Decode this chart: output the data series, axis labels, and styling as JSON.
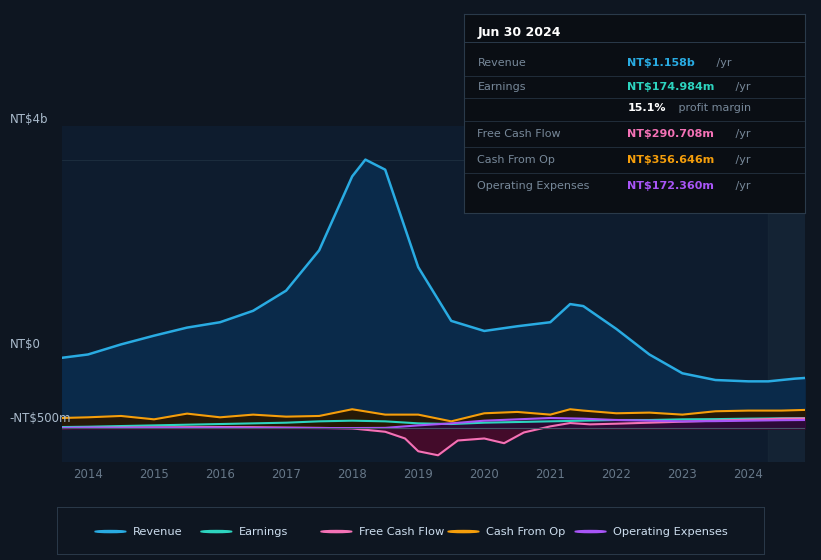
{
  "bg_color": "#0e1621",
  "plot_bg_color": "#0e1c2e",
  "title": "Jun 30 2024",
  "ylim": [
    -500,
    4500
  ],
  "y_zero": 0,
  "y_top": 4000,
  "y_neg": -500,
  "ytick_label_top": "NT$4b",
  "ytick_label_zero": "NT$0",
  "ytick_label_neg": "-NT$500m",
  "xlim_start": 2013.6,
  "xlim_end": 2024.85,
  "xticks": [
    2014,
    2015,
    2016,
    2017,
    2018,
    2019,
    2020,
    2021,
    2022,
    2023,
    2024
  ],
  "shade_start": 2024.3,
  "legend": [
    {
      "label": "Revenue",
      "color": "#29abe2"
    },
    {
      "label": "Earnings",
      "color": "#2dd4bf"
    },
    {
      "label": "Free Cash Flow",
      "color": "#f472b6"
    },
    {
      "label": "Cash From Op",
      "color": "#f59e0b"
    },
    {
      "label": "Operating Expenses",
      "color": "#a855f7"
    }
  ],
  "revenue": {
    "color": "#29abe2",
    "fill_color": "#0a2a4a",
    "x": [
      2013.6,
      2014.0,
      2014.5,
      2015.0,
      2015.5,
      2016.0,
      2016.5,
      2017.0,
      2017.5,
      2018.0,
      2018.2,
      2018.5,
      2019.0,
      2019.5,
      2020.0,
      2020.5,
      2021.0,
      2021.3,
      2021.5,
      2022.0,
      2022.5,
      2023.0,
      2023.5,
      2024.0,
      2024.3,
      2024.5,
      2024.7,
      2024.85
    ],
    "y": [
      1050,
      1100,
      1250,
      1380,
      1500,
      1580,
      1750,
      2050,
      2650,
      3750,
      4000,
      3850,
      2400,
      1600,
      1450,
      1520,
      1580,
      1850,
      1820,
      1480,
      1100,
      820,
      720,
      700,
      700,
      720,
      740,
      750
    ]
  },
  "earnings": {
    "color": "#2dd4bf",
    "fill_color": "#053030",
    "x": [
      2013.6,
      2014.0,
      2014.5,
      2015.0,
      2015.5,
      2016.0,
      2016.5,
      2017.0,
      2017.5,
      2018.0,
      2018.5,
      2019.0,
      2019.5,
      2020.0,
      2020.5,
      2021.0,
      2021.5,
      2022.0,
      2022.5,
      2023.0,
      2023.5,
      2024.0,
      2024.5,
      2024.85
    ],
    "y": [
      20,
      25,
      35,
      45,
      55,
      65,
      75,
      85,
      105,
      115,
      105,
      75,
      65,
      85,
      95,
      105,
      115,
      125,
      125,
      135,
      138,
      145,
      150,
      152
    ]
  },
  "free_cash_flow": {
    "color": "#f472b6",
    "fill_color": "#4a0a2a",
    "x": [
      2013.6,
      2014.0,
      2014.5,
      2015.0,
      2015.5,
      2016.0,
      2016.5,
      2017.0,
      2017.5,
      2018.0,
      2018.5,
      2018.8,
      2019.0,
      2019.3,
      2019.6,
      2020.0,
      2020.3,
      2020.6,
      2021.0,
      2021.3,
      2021.6,
      2022.0,
      2022.5,
      2023.0,
      2023.5,
      2024.0,
      2024.5,
      2024.85
    ],
    "y": [
      5,
      8,
      12,
      15,
      18,
      20,
      18,
      12,
      8,
      0,
      -50,
      -150,
      -340,
      -400,
      -180,
      -150,
      -220,
      -60,
      30,
      80,
      60,
      70,
      85,
      100,
      115,
      130,
      145,
      148
    ]
  },
  "cash_from_op": {
    "color": "#f59e0b",
    "fill_color": "#2a1800",
    "x": [
      2013.6,
      2014.0,
      2014.5,
      2015.0,
      2015.5,
      2016.0,
      2016.5,
      2017.0,
      2017.5,
      2018.0,
      2018.5,
      2019.0,
      2019.5,
      2020.0,
      2020.5,
      2021.0,
      2021.3,
      2021.5,
      2022.0,
      2022.5,
      2023.0,
      2023.5,
      2024.0,
      2024.5,
      2024.85
    ],
    "y": [
      155,
      165,
      185,
      135,
      220,
      165,
      205,
      175,
      185,
      285,
      205,
      205,
      105,
      225,
      245,
      205,
      285,
      265,
      225,
      235,
      205,
      255,
      265,
      265,
      275
    ]
  },
  "operating_expenses": {
    "color": "#a855f7",
    "fill_color": "#2a0a3a",
    "x": [
      2013.6,
      2014.0,
      2014.5,
      2015.0,
      2015.5,
      2016.0,
      2016.5,
      2017.0,
      2017.5,
      2018.0,
      2018.5,
      2019.0,
      2019.5,
      2020.0,
      2020.5,
      2021.0,
      2021.5,
      2022.0,
      2022.5,
      2023.0,
      2023.5,
      2024.0,
      2024.5,
      2024.85
    ],
    "y": [
      8,
      12,
      8,
      12,
      8,
      12,
      8,
      8,
      5,
      5,
      8,
      45,
      75,
      115,
      135,
      155,
      145,
      125,
      115,
      105,
      108,
      115,
      122,
      125
    ]
  },
  "info_box": {
    "title": "Jun 30 2024",
    "rows": [
      {
        "label": "Revenue",
        "value": "NT$1.158b",
        "unit": " /yr",
        "color": "#29abe2"
      },
      {
        "label": "Earnings",
        "value": "NT$174.984m",
        "unit": " /yr",
        "color": "#2dd4bf"
      },
      {
        "label": "",
        "value": "15.1%",
        "unit": " profit margin",
        "color": "#ffffff"
      },
      {
        "label": "Free Cash Flow",
        "value": "NT$290.708m",
        "unit": " /yr",
        "color": "#f472b6"
      },
      {
        "label": "Cash From Op",
        "value": "NT$356.646m",
        "unit": " /yr",
        "color": "#f59e0b"
      },
      {
        "label": "Operating Expenses",
        "value": "NT$172.360m",
        "unit": " /yr",
        "color": "#a855f7"
      }
    ]
  }
}
